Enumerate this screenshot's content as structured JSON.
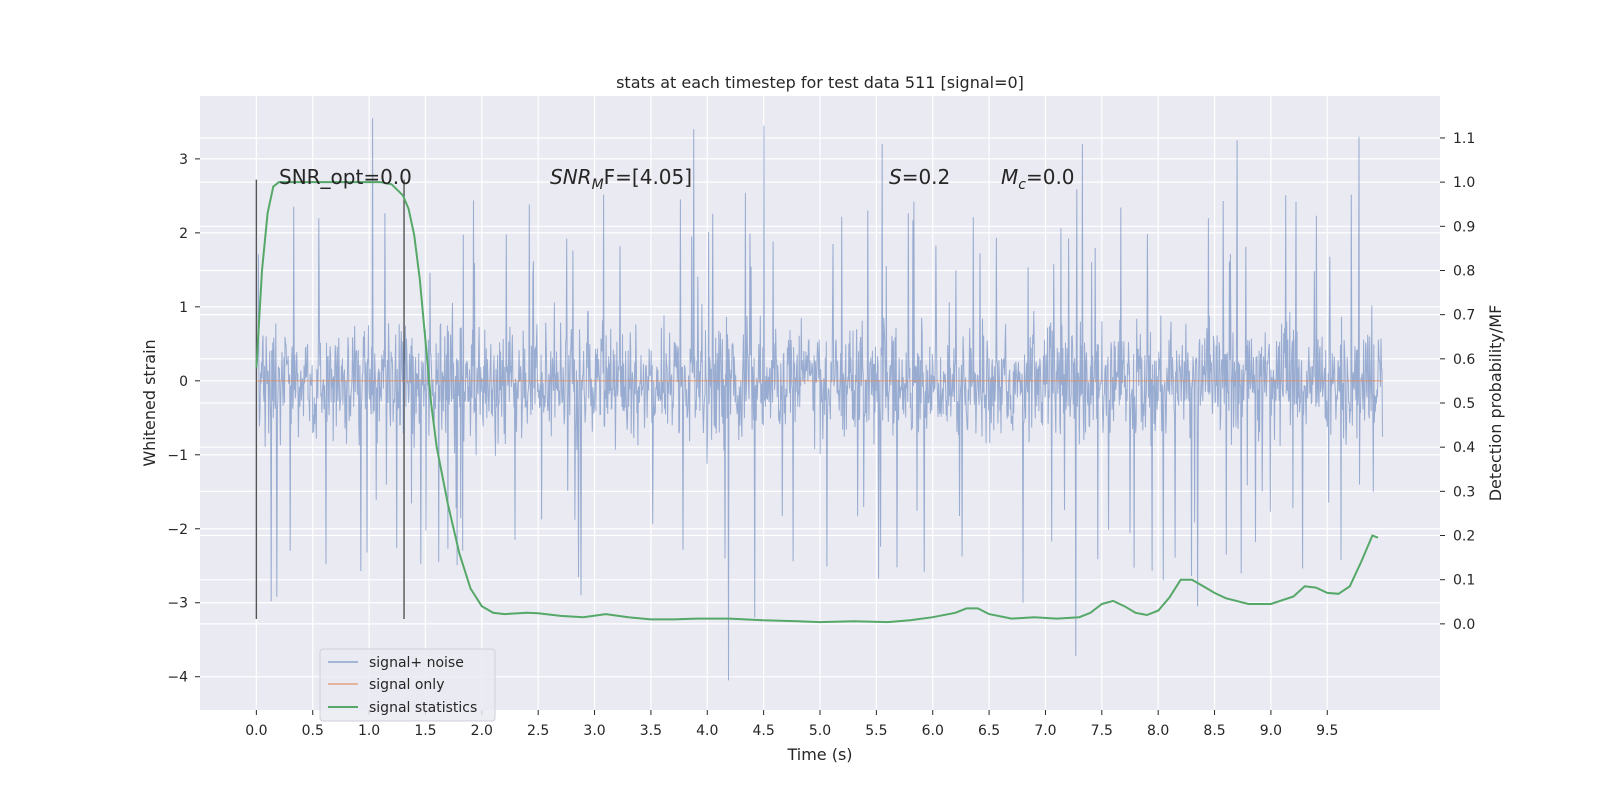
{
  "chart_data": {
    "type": "line",
    "title": "stats at each timestep for test data 511 [signal=0]",
    "xlabel": "Time (s)",
    "ylabel_left": "Whitened strain",
    "ylabel_right": "Detection probability/MF",
    "xlim": [
      -0.5,
      10.5
    ],
    "ylim_left": [
      -4.45,
      3.85
    ],
    "ylim_right": [
      -0.195,
      1.195
    ],
    "x_ticks": [
      0.0,
      0.5,
      1.0,
      1.5,
      2.0,
      2.5,
      3.0,
      3.5,
      4.0,
      4.5,
      5.0,
      5.5,
      6.0,
      6.5,
      7.0,
      7.5,
      8.0,
      8.5,
      9.0,
      9.5
    ],
    "x_tick_labels": [
      "0.0",
      "0.5",
      "1.0",
      "1.5",
      "2.0",
      "2.5",
      "3.0",
      "3.5",
      "4.0",
      "4.5",
      "5.0",
      "5.5",
      "6.0",
      "6.5",
      "7.0",
      "7.5",
      "8.0",
      "8.5",
      "9.0",
      "9.5"
    ],
    "y_left_ticks": [
      3,
      2,
      1,
      0,
      -1,
      -2,
      -3,
      -4
    ],
    "y_left_tick_labels": [
      "3",
      "2",
      "1",
      "0",
      "−1",
      "−2",
      "−3",
      "−4"
    ],
    "y_right_ticks": [
      1.1,
      1.0,
      0.9,
      0.8,
      0.7,
      0.6,
      0.5,
      0.4,
      0.3,
      0.2,
      0.1,
      0.0
    ],
    "y_right_tick_labels": [
      "1.1",
      "1.0",
      "0.9",
      "0.8",
      "0.7",
      "0.6",
      "0.5",
      "0.4",
      "0.3",
      "0.2",
      "0.1",
      "0.0"
    ],
    "grid": true,
    "legend": {
      "placement": "lower-left",
      "entries": [
        "signal+ noise",
        "signal only",
        "signal statistics"
      ]
    },
    "annotations": [
      {
        "label": "SNR_opt=0.0",
        "x": 0.2,
        "y": 2.8
      },
      {
        "label": "SNR_MF=[4.05]",
        "x": 2.6,
        "y": 2.8,
        "var": "SNR",
        "sub": "M",
        "tail": "F=[4.05]"
      },
      {
        "label": "S=0.2",
        "x": 5.6,
        "y": 2.8,
        "var": "S",
        "tail": "=0.2"
      },
      {
        "label": "M_c=0.0",
        "x": 6.6,
        "y": 2.8,
        "var": "M",
        "sub": "c",
        "tail": "=0.0"
      }
    ],
    "vlines": [
      {
        "x": 0.0,
        "ymin": -3.22,
        "ymax": 2.72
      },
      {
        "x": 1.31,
        "ymin": -3.22,
        "ymax": 2.72
      }
    ],
    "series": [
      {
        "name": "signal+ noise",
        "axis": "left",
        "color": "#4c72b0",
        "x_range": [
          0.0,
          9.99
        ],
        "envelope": {
          "dense_range": [
            -1.5,
            1.5
          ],
          "max": 3.55,
          "min": -4.05
        },
        "peaks": [
          {
            "x": 1.03,
            "y": 3.55
          },
          {
            "x": 4.19,
            "y": -4.05
          },
          {
            "x": 7.27,
            "y": -3.72
          },
          {
            "x": 9.78,
            "y": 3.3
          },
          {
            "x": 3.88,
            "y": 3.4
          },
          {
            "x": 4.5,
            "y": 3.45
          },
          {
            "x": 5.55,
            "y": 3.2
          },
          {
            "x": 8.7,
            "y": 3.25
          },
          {
            "x": 7.33,
            "y": 3.2
          },
          {
            "x": 2.88,
            "y": -2.9
          },
          {
            "x": 0.13,
            "y": -2.98
          },
          {
            "x": 0.18,
            "y": -2.92
          },
          {
            "x": 4.42,
            "y": -3.2
          },
          {
            "x": 8.35,
            "y": -3.05
          },
          {
            "x": 6.8,
            "y": -3.0
          }
        ]
      },
      {
        "name": "signal only",
        "axis": "left",
        "color": "#dd8452",
        "x": [
          0.0,
          9.99
        ],
        "y": [
          0.0,
          0.0
        ]
      },
      {
        "name": "signal statistics",
        "axis": "right",
        "color": "#55a868",
        "x": [
          0.0,
          0.05,
          0.1,
          0.15,
          0.2,
          0.3,
          0.5,
          0.7,
          0.9,
          1.0,
          1.1,
          1.2,
          1.3,
          1.35,
          1.4,
          1.45,
          1.5,
          1.55,
          1.6,
          1.7,
          1.8,
          1.9,
          2.0,
          2.1,
          2.2,
          2.4,
          2.5,
          2.7,
          2.9,
          3.1,
          3.3,
          3.5,
          3.7,
          3.9,
          4.2,
          4.5,
          4.8,
          5.0,
          5.3,
          5.6,
          5.8,
          6.0,
          6.2,
          6.3,
          6.4,
          6.5,
          6.7,
          6.9,
          7.1,
          7.3,
          7.4,
          7.5,
          7.6,
          7.7,
          7.8,
          7.9,
          8.0,
          8.1,
          8.2,
          8.3,
          8.4,
          8.5,
          8.6,
          8.8,
          9.0,
          9.2,
          9.3,
          9.4,
          9.5,
          9.6,
          9.7,
          9.8,
          9.9,
          9.95
        ],
        "y": [
          0.58,
          0.8,
          0.93,
          0.99,
          1.0,
          1.0,
          1.0,
          1.0,
          1.0,
          1.0,
          1.0,
          0.995,
          0.97,
          0.94,
          0.88,
          0.78,
          0.64,
          0.5,
          0.4,
          0.27,
          0.16,
          0.08,
          0.04,
          0.025,
          0.022,
          0.025,
          0.024,
          0.018,
          0.015,
          0.022,
          0.015,
          0.01,
          0.01,
          0.012,
          0.012,
          0.008,
          0.006,
          0.004,
          0.006,
          0.004,
          0.008,
          0.015,
          0.025,
          0.035,
          0.035,
          0.022,
          0.012,
          0.015,
          0.012,
          0.015,
          0.025,
          0.045,
          0.052,
          0.04,
          0.025,
          0.02,
          0.03,
          0.06,
          0.1,
          0.1,
          0.085,
          0.07,
          0.058,
          0.045,
          0.045,
          0.062,
          0.085,
          0.082,
          0.07,
          0.068,
          0.085,
          0.14,
          0.2,
          0.195
        ]
      }
    ]
  }
}
